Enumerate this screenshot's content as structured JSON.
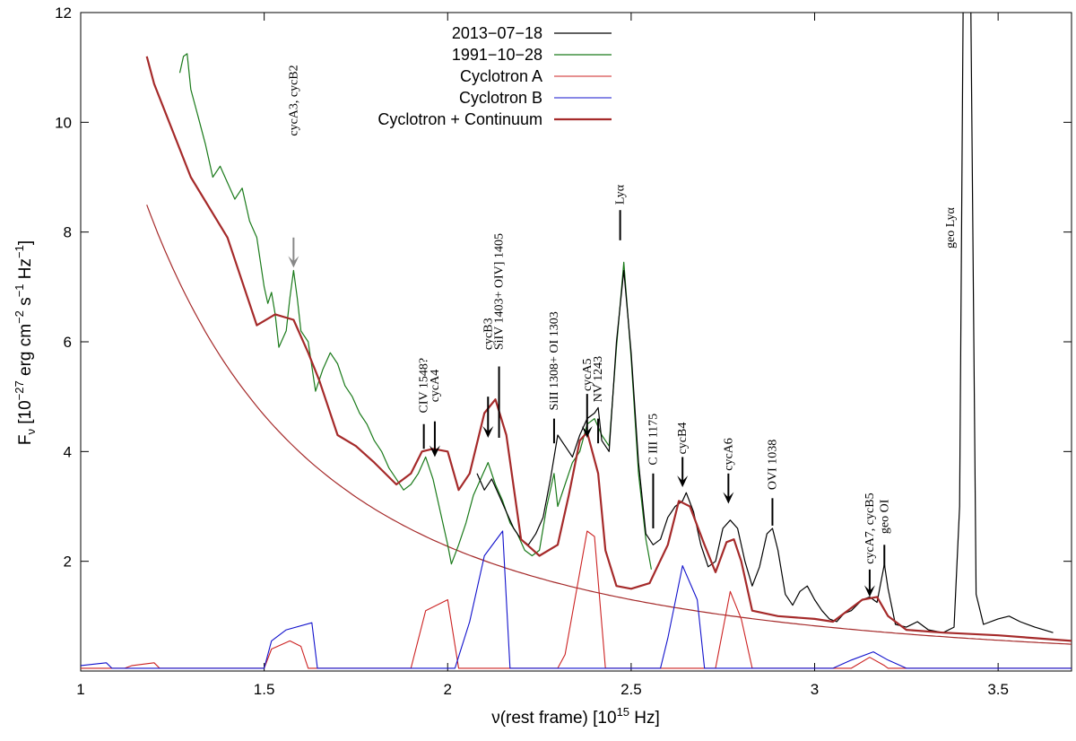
{
  "chart_data": {
    "type": "line",
    "xlabel_main": "ν(rest frame) [10",
    "xlabel_exp": "15",
    "xlabel_unit": " Hz]",
    "ylabel": {
      "p1": "F",
      "sub": "ν",
      "p2": " [10",
      "e1": "−27",
      "p3": " erg cm",
      "e2": "−2",
      "p4": " s",
      "e3": "−1",
      "p5": " Hz",
      "e4": "−1",
      "p6": "]"
    },
    "xlim": [
      1.0,
      3.7
    ],
    "ylim": [
      0,
      12
    ],
    "xticks": [
      1,
      1.5,
      2,
      2.5,
      3,
      3.5
    ],
    "xtick_labels": [
      "1",
      "1.5",
      "2",
      "2.5",
      "3",
      "3.5"
    ],
    "yticks": [
      2,
      4,
      6,
      8,
      10,
      12
    ],
    "ytick_labels": [
      "2",
      "4",
      "6",
      "8",
      "10",
      "12"
    ],
    "legend_position": "top-center",
    "series": [
      {
        "name": "2013−07−18",
        "color": "#000000",
        "width": 1.2,
        "points": [
          [
            2.08,
            3.6
          ],
          [
            2.1,
            3.3
          ],
          [
            2.12,
            3.5
          ],
          [
            2.14,
            3.2
          ],
          [
            2.16,
            2.9
          ],
          [
            2.18,
            2.6
          ],
          [
            2.2,
            2.4
          ],
          [
            2.22,
            2.3
          ],
          [
            2.24,
            2.5
          ],
          [
            2.26,
            2.8
          ],
          [
            2.28,
            3.5
          ],
          [
            2.3,
            4.3
          ],
          [
            2.32,
            4.1
          ],
          [
            2.34,
            3.9
          ],
          [
            2.36,
            4.3
          ],
          [
            2.38,
            4.6
          ],
          [
            2.4,
            4.7
          ],
          [
            2.41,
            4.8
          ],
          [
            2.42,
            4.2
          ],
          [
            2.44,
            4.0
          ],
          [
            2.46,
            6.0
          ],
          [
            2.48,
            7.3
          ],
          [
            2.5,
            5.8
          ],
          [
            2.52,
            3.8
          ],
          [
            2.54,
            2.5
          ],
          [
            2.56,
            2.3
          ],
          [
            2.58,
            2.4
          ],
          [
            2.6,
            2.8
          ],
          [
            2.62,
            3.0
          ],
          [
            2.64,
            3.1
          ],
          [
            2.65,
            3.25
          ],
          [
            2.67,
            2.9
          ],
          [
            2.69,
            2.3
          ],
          [
            2.71,
            1.9
          ],
          [
            2.73,
            2.0
          ],
          [
            2.75,
            2.6
          ],
          [
            2.77,
            2.75
          ],
          [
            2.79,
            2.6
          ],
          [
            2.81,
            2.0
          ],
          [
            2.83,
            1.55
          ],
          [
            2.85,
            1.9
          ],
          [
            2.87,
            2.5
          ],
          [
            2.885,
            2.6
          ],
          [
            2.9,
            2.2
          ],
          [
            2.92,
            1.4
          ],
          [
            2.94,
            1.2
          ],
          [
            2.96,
            1.45
          ],
          [
            2.98,
            1.55
          ],
          [
            3.0,
            1.3
          ],
          [
            3.02,
            1.1
          ],
          [
            3.04,
            0.95
          ],
          [
            3.06,
            0.9
          ],
          [
            3.08,
            1.05
          ],
          [
            3.1,
            1.1
          ],
          [
            3.13,
            1.3
          ],
          [
            3.15,
            1.35
          ],
          [
            3.17,
            1.25
          ],
          [
            3.19,
            1.95
          ],
          [
            3.2,
            1.5
          ],
          [
            3.22,
            0.85
          ],
          [
            3.25,
            0.8
          ],
          [
            3.28,
            0.9
          ],
          [
            3.31,
            0.75
          ],
          [
            3.35,
            0.7
          ],
          [
            3.38,
            0.8
          ],
          [
            3.395,
            3.0
          ],
          [
            3.405,
            12.5
          ],
          [
            3.425,
            12.5
          ],
          [
            3.44,
            1.4
          ],
          [
            3.46,
            0.85
          ],
          [
            3.5,
            0.95
          ],
          [
            3.53,
            1.0
          ],
          [
            3.56,
            0.9
          ],
          [
            3.6,
            0.8
          ],
          [
            3.65,
            0.7
          ]
        ]
      },
      {
        "name": "1991−10−28",
        "color": "#1a7a1a",
        "width": 1.2,
        "points": [
          [
            1.27,
            10.9
          ],
          [
            1.28,
            11.2
          ],
          [
            1.29,
            11.25
          ],
          [
            1.3,
            10.6
          ],
          [
            1.32,
            10.1
          ],
          [
            1.34,
            9.6
          ],
          [
            1.36,
            9.0
          ],
          [
            1.38,
            9.2
          ],
          [
            1.4,
            8.9
          ],
          [
            1.42,
            8.6
          ],
          [
            1.44,
            8.8
          ],
          [
            1.46,
            8.2
          ],
          [
            1.48,
            7.9
          ],
          [
            1.5,
            7.0
          ],
          [
            1.51,
            6.7
          ],
          [
            1.52,
            6.9
          ],
          [
            1.53,
            6.5
          ],
          [
            1.54,
            5.9
          ],
          [
            1.56,
            6.2
          ],
          [
            1.57,
            6.8
          ],
          [
            1.58,
            7.3
          ],
          [
            1.59,
            6.8
          ],
          [
            1.6,
            6.2
          ],
          [
            1.62,
            6.0
          ],
          [
            1.64,
            5.1
          ],
          [
            1.66,
            5.5
          ],
          [
            1.68,
            5.8
          ],
          [
            1.7,
            5.6
          ],
          [
            1.72,
            5.2
          ],
          [
            1.74,
            5.0
          ],
          [
            1.76,
            4.7
          ],
          [
            1.78,
            4.5
          ],
          [
            1.8,
            4.2
          ],
          [
            1.82,
            4.0
          ],
          [
            1.84,
            3.7
          ],
          [
            1.86,
            3.5
          ],
          [
            1.88,
            3.3
          ],
          [
            1.9,
            3.4
          ],
          [
            1.92,
            3.6
          ],
          [
            1.94,
            3.9
          ],
          [
            1.96,
            3.5
          ],
          [
            1.98,
            2.9
          ],
          [
            2.0,
            2.3
          ],
          [
            2.01,
            1.95
          ],
          [
            2.03,
            2.3
          ],
          [
            2.05,
            2.7
          ],
          [
            2.07,
            3.2
          ],
          [
            2.09,
            3.5
          ],
          [
            2.11,
            3.8
          ],
          [
            2.13,
            3.4
          ],
          [
            2.15,
            3.1
          ],
          [
            2.17,
            2.7
          ],
          [
            2.19,
            2.5
          ],
          [
            2.21,
            2.2
          ],
          [
            2.23,
            2.1
          ],
          [
            2.25,
            2.2
          ],
          [
            2.27,
            3.0
          ],
          [
            2.29,
            3.6
          ],
          [
            2.3,
            3.0
          ],
          [
            2.32,
            3.4
          ],
          [
            2.34,
            3.8
          ],
          [
            2.36,
            4.0
          ],
          [
            2.38,
            4.5
          ],
          [
            2.4,
            4.6
          ],
          [
            2.42,
            4.3
          ],
          [
            2.44,
            4.1
          ],
          [
            2.46,
            5.9
          ],
          [
            2.48,
            7.45
          ],
          [
            2.5,
            5.7
          ],
          [
            2.52,
            3.6
          ],
          [
            2.54,
            2.4
          ],
          [
            2.555,
            1.85
          ]
        ]
      },
      {
        "name": "Cyclotron A",
        "color": "#cc2222",
        "width": 1.1,
        "points": [
          [
            1.0,
            0.05
          ],
          [
            1.12,
            0.05
          ],
          [
            1.14,
            0.1
          ],
          [
            1.2,
            0.15
          ],
          [
            1.215,
            0.05
          ],
          [
            1.5,
            0.05
          ],
          [
            1.52,
            0.4
          ],
          [
            1.57,
            0.55
          ],
          [
            1.6,
            0.45
          ],
          [
            1.62,
            0.05
          ],
          [
            1.9,
            0.05
          ],
          [
            1.94,
            1.1
          ],
          [
            2.0,
            1.3
          ],
          [
            2.03,
            0.05
          ],
          [
            2.3,
            0.05
          ],
          [
            2.32,
            0.3
          ],
          [
            2.38,
            2.55
          ],
          [
            2.4,
            2.45
          ],
          [
            2.43,
            0.05
          ],
          [
            2.73,
            0.05
          ],
          [
            2.77,
            1.45
          ],
          [
            2.8,
            0.95
          ],
          [
            2.83,
            0.05
          ],
          [
            3.1,
            0.05
          ],
          [
            3.15,
            0.25
          ],
          [
            3.19,
            0.1
          ],
          [
            3.2,
            0.05
          ],
          [
            3.7,
            0.05
          ]
        ]
      },
      {
        "name": "Cyclotron B",
        "color": "#1111cc",
        "width": 1.1,
        "points": [
          [
            1.0,
            0.1
          ],
          [
            1.07,
            0.15
          ],
          [
            1.085,
            0.05
          ],
          [
            1.5,
            0.05
          ],
          [
            1.52,
            0.55
          ],
          [
            1.56,
            0.75
          ],
          [
            1.63,
            0.88
          ],
          [
            1.645,
            0.05
          ],
          [
            2.02,
            0.05
          ],
          [
            2.06,
            0.9
          ],
          [
            2.1,
            2.1
          ],
          [
            2.15,
            2.55
          ],
          [
            2.17,
            0.05
          ],
          [
            2.58,
            0.05
          ],
          [
            2.6,
            0.6
          ],
          [
            2.64,
            1.92
          ],
          [
            2.68,
            1.3
          ],
          [
            2.7,
            0.05
          ],
          [
            3.05,
            0.05
          ],
          [
            3.1,
            0.2
          ],
          [
            3.16,
            0.35
          ],
          [
            3.2,
            0.2
          ],
          [
            3.25,
            0.05
          ],
          [
            3.7,
            0.05
          ]
        ]
      },
      {
        "name": "Cyclotron + Continuum",
        "color": "#a52a2a",
        "width": 2.2,
        "points": [
          [
            1.18,
            11.2
          ],
          [
            1.2,
            10.7
          ],
          [
            1.3,
            9.0
          ],
          [
            1.4,
            7.9
          ],
          [
            1.48,
            6.3
          ],
          [
            1.53,
            6.5
          ],
          [
            1.58,
            6.4
          ],
          [
            1.62,
            5.8
          ],
          [
            1.65,
            5.3
          ],
          [
            1.7,
            4.3
          ],
          [
            1.75,
            4.1
          ],
          [
            1.8,
            3.8
          ],
          [
            1.86,
            3.4
          ],
          [
            1.9,
            3.6
          ],
          [
            1.93,
            4.0
          ],
          [
            1.96,
            4.05
          ],
          [
            2.0,
            4.0
          ],
          [
            2.03,
            3.3
          ],
          [
            2.06,
            3.6
          ],
          [
            2.1,
            4.7
          ],
          [
            2.13,
            4.95
          ],
          [
            2.16,
            4.3
          ],
          [
            2.2,
            2.4
          ],
          [
            2.25,
            2.1
          ],
          [
            2.3,
            2.3
          ],
          [
            2.33,
            3.2
          ],
          [
            2.36,
            4.2
          ],
          [
            2.38,
            4.35
          ],
          [
            2.41,
            3.6
          ],
          [
            2.43,
            2.2
          ],
          [
            2.46,
            1.55
          ],
          [
            2.5,
            1.5
          ],
          [
            2.55,
            1.6
          ],
          [
            2.6,
            2.3
          ],
          [
            2.63,
            3.1
          ],
          [
            2.66,
            3.0
          ],
          [
            2.7,
            2.3
          ],
          [
            2.73,
            1.8
          ],
          [
            2.76,
            2.35
          ],
          [
            2.78,
            2.4
          ],
          [
            2.8,
            2.0
          ],
          [
            2.83,
            1.1
          ],
          [
            2.9,
            1.0
          ],
          [
            3.0,
            0.95
          ],
          [
            3.05,
            0.9
          ],
          [
            3.08,
            1.05
          ],
          [
            3.13,
            1.3
          ],
          [
            3.17,
            1.35
          ],
          [
            3.2,
            1.0
          ],
          [
            3.25,
            0.75
          ],
          [
            3.35,
            0.7
          ],
          [
            3.5,
            0.65
          ],
          [
            3.7,
            0.55
          ]
        ]
      },
      {
        "name": "continuum",
        "color": "#a52a2a",
        "width": 1.2,
        "legend": false,
        "model": "power-law",
        "A": 12.85,
        "exponent": -2.5
      }
    ],
    "annotations": [
      {
        "text": "cycA3, cycB2",
        "x": 1.58,
        "label_y": 9.75,
        "mark": "arrow",
        "mark_color": "#888888",
        "top": 7.9,
        "bottom": 7.35
      },
      {
        "text": "CIV 1548?",
        "x": 1.935,
        "label_y": 4.7,
        "mark": "line",
        "top": 4.5,
        "bottom": 4.05
      },
      {
        "text": "cycA4",
        "x": 1.965,
        "label_y": 4.9,
        "mark": "arrow",
        "top": 4.55,
        "bottom": 3.9
      },
      {
        "text": "cycB3",
        "x": 2.11,
        "label_y": 5.85,
        "mark": "arrow",
        "top": 5.0,
        "bottom": 4.25
      },
      {
        "text": "SiIV 1403+ OIV] 1405",
        "x": 2.14,
        "label_y": 5.85,
        "mark": "line",
        "top": 5.55,
        "bottom": 4.25
      },
      {
        "text": "SiII 1308+ OI 1303",
        "x": 2.29,
        "label_y": 4.75,
        "mark": "line",
        "top": 4.6,
        "bottom": 4.15
      },
      {
        "text": "cycA5",
        "x": 2.38,
        "label_y": 5.1,
        "mark": "arrow",
        "top": 5.05,
        "bottom": 4.25
      },
      {
        "text": "NV 1243",
        "x": 2.41,
        "label_y": 4.9,
        "mark": "line",
        "top": 4.6,
        "bottom": 4.15
      },
      {
        "text": "Lyα",
        "x": 2.47,
        "label_y": 8.5,
        "mark": "line",
        "top": 8.4,
        "bottom": 7.85
      },
      {
        "text": "C III 1175",
        "x": 2.56,
        "label_y": 3.75,
        "mark": "line",
        "top": 3.6,
        "bottom": 2.6
      },
      {
        "text": "cycB4",
        "x": 2.64,
        "label_y": 3.95,
        "mark": "arrow",
        "top": 3.9,
        "bottom": 3.35
      },
      {
        "text": "cycA6",
        "x": 2.765,
        "label_y": 3.65,
        "mark": "arrow",
        "top": 3.6,
        "bottom": 3.05
      },
      {
        "text": "OVI 1038",
        "x": 2.885,
        "label_y": 3.3,
        "mark": "line",
        "top": 3.15,
        "bottom": 2.65
      },
      {
        "text": "cycA7, cycB5",
        "x": 3.15,
        "label_y": 1.95,
        "mark": "arrow",
        "top": 1.85,
        "bottom": 1.35
      },
      {
        "text": "geo OI",
        "x": 3.19,
        "label_y": 2.5,
        "mark": "line",
        "top": 2.3,
        "bottom": 1.9
      },
      {
        "text": "geo Lyα",
        "x": 3.37,
        "label_y": 7.7,
        "mark": "none",
        "top": 0,
        "bottom": 0
      }
    ]
  }
}
